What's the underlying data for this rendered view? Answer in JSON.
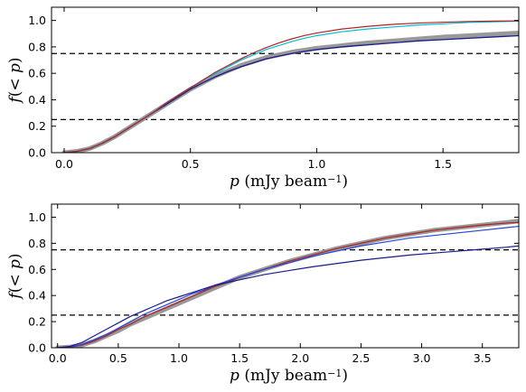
{
  "chart_data": [
    {
      "type": "line",
      "title": "",
      "xlabel": {
        "var": "p",
        "unit": "(mJy beam",
        "exp": "−1",
        "close": ")"
      },
      "ylabel": {
        "f": "f",
        "open": "(",
        "lt": "< ",
        "var": "p",
        "close": ")"
      },
      "xlim": [
        -0.05,
        1.8
      ],
      "ylim": [
        0,
        1.1
      ],
      "xticks": [
        0.0,
        0.5,
        1.0,
        1.5
      ],
      "xtick_labels": [
        "0.0",
        "0.5",
        "1.0",
        "1.5"
      ],
      "yticks": [
        0.0,
        0.2,
        0.4,
        0.6,
        0.8,
        1.0
      ],
      "ytick_labels": [
        "0.0",
        "0.2",
        "0.4",
        "0.6",
        "0.8",
        "1.0"
      ],
      "hlines": [
        {
          "y": 0.25,
          "style": "dashed",
          "color": "#000000"
        },
        {
          "y": 0.75,
          "style": "dashed",
          "color": "#000000"
        }
      ],
      "series": [
        {
          "color": "#999999",
          "width": 5,
          "x": [
            0.0,
            0.05,
            0.1,
            0.15,
            0.2,
            0.25,
            0.3,
            0.35,
            0.4,
            0.45,
            0.5,
            0.55,
            0.6,
            0.65,
            0.7,
            0.75,
            0.8,
            0.85,
            0.9,
            0.95,
            1.0,
            1.1,
            1.2,
            1.3,
            1.4,
            1.5,
            1.6,
            1.7,
            1.8
          ],
          "y": [
            0.0,
            0.01,
            0.03,
            0.07,
            0.12,
            0.18,
            0.24,
            0.3,
            0.36,
            0.42,
            0.48,
            0.53,
            0.58,
            0.62,
            0.66,
            0.69,
            0.72,
            0.74,
            0.76,
            0.775,
            0.79,
            0.81,
            0.83,
            0.845,
            0.86,
            0.875,
            0.885,
            0.895,
            0.905
          ]
        },
        {
          "color": "#1a1a8c",
          "width": 1.3,
          "x": [
            0.0,
            0.05,
            0.1,
            0.15,
            0.2,
            0.25,
            0.3,
            0.35,
            0.4,
            0.45,
            0.5,
            0.55,
            0.6,
            0.65,
            0.7,
            0.75,
            0.8,
            0.85,
            0.9,
            0.95,
            1.0,
            1.1,
            1.2,
            1.3,
            1.4,
            1.5,
            1.6,
            1.7,
            1.8
          ],
          "y": [
            0.0,
            0.01,
            0.03,
            0.07,
            0.12,
            0.18,
            0.24,
            0.3,
            0.36,
            0.42,
            0.48,
            0.53,
            0.575,
            0.615,
            0.65,
            0.68,
            0.71,
            0.73,
            0.75,
            0.765,
            0.78,
            0.8,
            0.815,
            0.83,
            0.845,
            0.855,
            0.865,
            0.875,
            0.885
          ]
        },
        {
          "color": "#00bcd4",
          "width": 1.2,
          "x": [
            0.0,
            0.05,
            0.1,
            0.15,
            0.2,
            0.25,
            0.3,
            0.35,
            0.4,
            0.45,
            0.5,
            0.55,
            0.6,
            0.65,
            0.7,
            0.75,
            0.8,
            0.85,
            0.9,
            0.95,
            1.0,
            1.1,
            1.2,
            1.3,
            1.4,
            1.5,
            1.6,
            1.7,
            1.8
          ],
          "y": [
            0.0,
            0.01,
            0.03,
            0.07,
            0.12,
            0.18,
            0.24,
            0.3,
            0.37,
            0.43,
            0.49,
            0.55,
            0.6,
            0.65,
            0.7,
            0.74,
            0.78,
            0.81,
            0.84,
            0.865,
            0.885,
            0.915,
            0.935,
            0.95,
            0.965,
            0.975,
            0.985,
            0.99,
            0.995
          ]
        },
        {
          "color": "#b22222",
          "width": 1.2,
          "x": [
            0.0,
            0.05,
            0.1,
            0.15,
            0.2,
            0.25,
            0.3,
            0.35,
            0.4,
            0.45,
            0.5,
            0.55,
            0.6,
            0.65,
            0.7,
            0.75,
            0.8,
            0.85,
            0.9,
            0.95,
            1.0,
            1.1,
            1.2,
            1.3,
            1.4,
            1.5,
            1.6,
            1.7,
            1.8
          ],
          "y": [
            0.0,
            0.01,
            0.03,
            0.07,
            0.12,
            0.18,
            0.24,
            0.3,
            0.37,
            0.43,
            0.49,
            0.55,
            0.61,
            0.66,
            0.71,
            0.755,
            0.795,
            0.83,
            0.86,
            0.885,
            0.905,
            0.935,
            0.955,
            0.97,
            0.98,
            0.987,
            0.992,
            0.995,
            0.997
          ]
        }
      ]
    },
    {
      "type": "line",
      "title": "",
      "xlabel": {
        "var": "p",
        "unit": "(mJy beam",
        "exp": "−1",
        "close": ")"
      },
      "ylabel": {
        "f": "f",
        "open": "(",
        "lt": "< ",
        "var": "p",
        "close": ")"
      },
      "xlim": [
        -0.05,
        3.8
      ],
      "ylim": [
        0,
        1.1
      ],
      "xticks": [
        0.0,
        0.5,
        1.0,
        1.5,
        2.0,
        2.5,
        3.0,
        3.5
      ],
      "xtick_labels": [
        "0.0",
        "0.5",
        "1.0",
        "1.5",
        "2.0",
        "2.5",
        "3.0",
        "3.5"
      ],
      "yticks": [
        0.0,
        0.2,
        0.4,
        0.6,
        0.8,
        1.0
      ],
      "ytick_labels": [
        "0.0",
        "0.2",
        "0.4",
        "0.6",
        "0.8",
        "1.0"
      ],
      "hlines": [
        {
          "y": 0.25,
          "style": "dashed",
          "color": "#000000"
        },
        {
          "y": 0.75,
          "style": "dashed",
          "color": "#000000"
        }
      ],
      "series": [
        {
          "color": "#999999",
          "width": 5,
          "x": [
            0.0,
            0.1,
            0.2,
            0.3,
            0.4,
            0.5,
            0.6,
            0.7,
            0.8,
            0.9,
            1.0,
            1.1,
            1.2,
            1.3,
            1.4,
            1.5,
            1.7,
            1.9,
            2.1,
            2.3,
            2.5,
            2.7,
            2.9,
            3.1,
            3.3,
            3.5,
            3.7,
            3.8
          ],
          "y": [
            0.0,
            0.005,
            0.02,
            0.05,
            0.09,
            0.13,
            0.18,
            0.22,
            0.26,
            0.3,
            0.34,
            0.38,
            0.42,
            0.46,
            0.5,
            0.54,
            0.6,
            0.66,
            0.71,
            0.76,
            0.8,
            0.84,
            0.87,
            0.9,
            0.92,
            0.94,
            0.96,
            0.97
          ]
        },
        {
          "color": "#b22222",
          "width": 1.2,
          "x": [
            0.0,
            0.1,
            0.2,
            0.3,
            0.4,
            0.5,
            0.6,
            0.7,
            0.8,
            0.9,
            1.0,
            1.1,
            1.2,
            1.3,
            1.4,
            1.5,
            1.7,
            1.9,
            2.1,
            2.3,
            2.5,
            2.7,
            2.9,
            3.1,
            3.3,
            3.5,
            3.7,
            3.8
          ],
          "y": [
            0.0,
            0.005,
            0.02,
            0.05,
            0.09,
            0.14,
            0.18,
            0.23,
            0.27,
            0.31,
            0.35,
            0.39,
            0.43,
            0.47,
            0.5,
            0.54,
            0.6,
            0.66,
            0.71,
            0.76,
            0.8,
            0.84,
            0.87,
            0.9,
            0.92,
            0.94,
            0.955,
            0.96
          ]
        },
        {
          "color": "#2244dd",
          "width": 1.2,
          "x": [
            0.0,
            0.1,
            0.2,
            0.3,
            0.4,
            0.5,
            0.6,
            0.7,
            0.8,
            0.9,
            1.0,
            1.1,
            1.2,
            1.3,
            1.4,
            1.5,
            1.7,
            1.9,
            2.1,
            2.3,
            2.5,
            2.7,
            2.9,
            3.1,
            3.3,
            3.5,
            3.7,
            3.8
          ],
          "y": [
            0.0,
            0.005,
            0.025,
            0.06,
            0.1,
            0.15,
            0.2,
            0.25,
            0.29,
            0.33,
            0.37,
            0.41,
            0.44,
            0.48,
            0.51,
            0.54,
            0.6,
            0.65,
            0.7,
            0.74,
            0.78,
            0.81,
            0.84,
            0.86,
            0.88,
            0.9,
            0.92,
            0.93
          ]
        },
        {
          "color": "#1a1a8c",
          "width": 1.2,
          "x": [
            0.0,
            0.1,
            0.2,
            0.3,
            0.4,
            0.5,
            0.6,
            0.7,
            0.8,
            0.9,
            1.0,
            1.1,
            1.2,
            1.3,
            1.4,
            1.5,
            1.7,
            1.9,
            2.1,
            2.3,
            2.5,
            2.7,
            2.9,
            3.1,
            3.3,
            3.5,
            3.7,
            3.8
          ],
          "y": [
            0.0,
            0.01,
            0.04,
            0.09,
            0.14,
            0.19,
            0.24,
            0.28,
            0.32,
            0.36,
            0.39,
            0.42,
            0.45,
            0.48,
            0.5,
            0.52,
            0.56,
            0.59,
            0.62,
            0.645,
            0.67,
            0.69,
            0.71,
            0.725,
            0.74,
            0.755,
            0.77,
            0.78
          ]
        }
      ]
    }
  ]
}
